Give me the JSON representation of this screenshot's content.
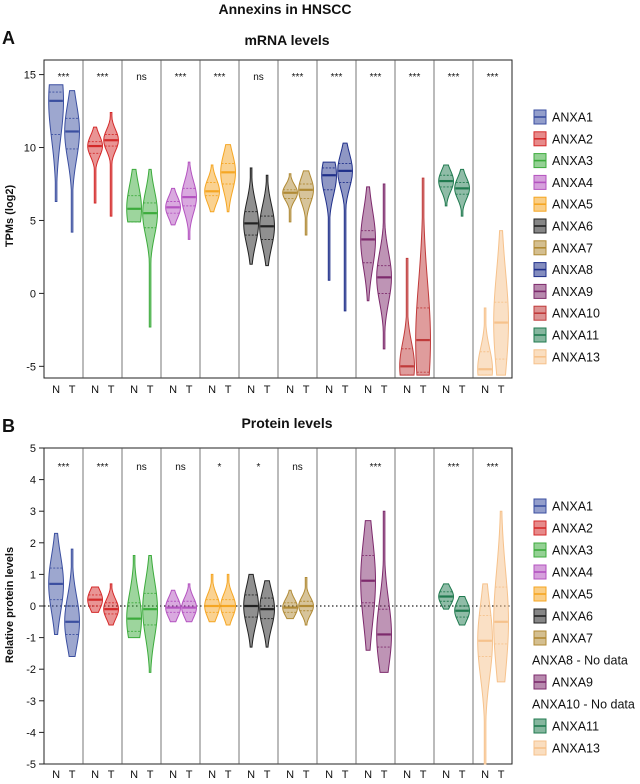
{
  "title": "Annexins in HNSCC",
  "colors": {
    "ANXA1": "#3b4fa0",
    "ANXA2": "#d42a2a",
    "ANXA3": "#3cab3c",
    "ANXA4": "#b453c0",
    "ANXA5": "#f5a623",
    "ANXA6": "#222222",
    "ANXA7": "#b08a35",
    "ANXA8": "#1f2f8a",
    "ANXA9": "#7d2a6c",
    "ANXA10": "#c03a3a",
    "ANXA11": "#207a4f",
    "ANXA13": "#f6c28c"
  },
  "chart_data": [
    {
      "type": "violin",
      "panel_label": "A",
      "title": "mRNA levels",
      "xlabel": "",
      "ylabel": "TPMs (log2)",
      "ylim": [
        -5.8,
        16
      ],
      "yticks": [
        -5,
        0,
        5,
        10,
        15
      ],
      "reference_line": null,
      "group_labels": [
        "N",
        "T"
      ],
      "legend": [
        "ANXA1",
        "ANXA2",
        "ANXA3",
        "ANXA4",
        "ANXA5",
        "ANXA6",
        "ANXA7",
        "ANXA8",
        "ANXA9",
        "ANXA10",
        "ANXA11",
        "ANXA13"
      ],
      "series": [
        {
          "name": "ANXA1",
          "sig": "***",
          "N": {
            "min": 6.3,
            "max": 14.3,
            "median": 13.2,
            "q1": 10.9,
            "q3": 13.8
          },
          "T": {
            "min": 4.2,
            "max": 13.9,
            "median": 11.1,
            "q1": 9.9,
            "q3": 12.0
          }
        },
        {
          "name": "ANXA2",
          "sig": "***",
          "N": {
            "min": 6.2,
            "max": 11.4,
            "median": 10.1,
            "q1": 9.6,
            "q3": 10.4
          },
          "T": {
            "min": 5.3,
            "max": 12.4,
            "median": 10.5,
            "q1": 10.1,
            "q3": 10.9
          }
        },
        {
          "name": "ANXA3",
          "sig": "ns",
          "N": {
            "min": 4.9,
            "max": 8.5,
            "median": 5.8,
            "q1": 4.9,
            "q3": 6.7
          },
          "T": {
            "min": -2.3,
            "max": 8.5,
            "median": 5.5,
            "q1": 4.5,
            "q3": 6.2
          }
        },
        {
          "name": "ANXA4",
          "sig": "***",
          "N": {
            "min": 4.7,
            "max": 7.2,
            "median": 5.9,
            "q1": 5.5,
            "q3": 6.3
          },
          "T": {
            "min": 3.7,
            "max": 9.0,
            "median": 6.6,
            "q1": 6.0,
            "q3": 7.2
          }
        },
        {
          "name": "ANXA5",
          "sig": "***",
          "N": {
            "min": 5.6,
            "max": 8.8,
            "median": 7.0,
            "q1": 6.7,
            "q3": 7.6
          },
          "T": {
            "min": 5.6,
            "max": 10.2,
            "median": 8.3,
            "q1": 7.5,
            "q3": 8.9
          }
        },
        {
          "name": "ANXA6",
          "sig": "ns",
          "N": {
            "min": 2.0,
            "max": 8.6,
            "median": 4.8,
            "q1": 4.0,
            "q3": 5.6
          },
          "T": {
            "min": 1.9,
            "max": 8.1,
            "median": 4.6,
            "q1": 3.7,
            "q3": 5.3
          }
        },
        {
          "name": "ANXA7",
          "sig": "***",
          "N": {
            "min": 4.9,
            "max": 8.2,
            "median": 6.9,
            "q1": 6.5,
            "q3": 7.1
          },
          "T": {
            "min": 4.0,
            "max": 8.4,
            "median": 7.1,
            "q1": 6.5,
            "q3": 7.5
          }
        },
        {
          "name": "ANXA8",
          "sig": "***",
          "N": {
            "min": 0.9,
            "max": 9.0,
            "median": 8.1,
            "q1": 7.1,
            "q3": 8.6
          },
          "T": {
            "min": -1.2,
            "max": 10.3,
            "median": 8.4,
            "q1": 7.6,
            "q3": 8.9
          }
        },
        {
          "name": "ANXA9",
          "sig": "***",
          "N": {
            "min": -0.5,
            "max": 7.3,
            "median": 3.7,
            "q1": 2.1,
            "q3": 4.3
          },
          "T": {
            "min": -3.8,
            "max": 7.5,
            "median": 1.1,
            "q1": 0.0,
            "q3": 1.9
          }
        },
        {
          "name": "ANXA10",
          "sig": "***",
          "N": {
            "min": -5.6,
            "max": 2.4,
            "median": -5.0,
            "q1": -5.6,
            "q3": -3.8
          },
          "T": {
            "min": -5.6,
            "max": 7.9,
            "median": -3.2,
            "q1": -5.4,
            "q3": -1.0
          }
        },
        {
          "name": "ANXA11",
          "sig": "***",
          "N": {
            "min": 6.0,
            "max": 8.8,
            "median": 7.7,
            "q1": 7.3,
            "q3": 8.1
          },
          "T": {
            "min": 5.3,
            "max": 8.5,
            "median": 7.2,
            "q1": 6.8,
            "q3": 7.6
          }
        },
        {
          "name": "ANXA13",
          "sig": "***",
          "N": {
            "min": -5.6,
            "max": -1.0,
            "median": -5.2,
            "q1": -5.6,
            "q3": -4.0
          },
          "T": {
            "min": -5.6,
            "max": 4.3,
            "median": -2.0,
            "q1": -4.5,
            "q3": -0.6
          }
        }
      ]
    },
    {
      "type": "violin",
      "panel_label": "B",
      "title": "Protein levels",
      "xlabel": "",
      "ylabel": "Relative protein levels",
      "ylim": [
        -5,
        5
      ],
      "yticks": [
        -5,
        -4,
        -3,
        -2,
        -1,
        0,
        1,
        2,
        3,
        4,
        5
      ],
      "reference_line": 0,
      "group_labels": [
        "N",
        "T"
      ],
      "legend": [
        "ANXA1",
        "ANXA2",
        "ANXA3",
        "ANXA4",
        "ANXA5",
        "ANXA6",
        "ANXA7",
        "ANXA8 - No data",
        "ANXA9",
        "ANXA10 - No data",
        "ANXA11",
        "ANXA13"
      ],
      "series": [
        {
          "name": "ANXA1",
          "sig": "***",
          "N": {
            "min": -0.9,
            "max": 2.3,
            "median": 0.7,
            "q1": 0.2,
            "q3": 1.2
          },
          "T": {
            "min": -1.6,
            "max": 1.8,
            "median": -0.5,
            "q1": -0.9,
            "q3": 0.0
          }
        },
        {
          "name": "ANXA2",
          "sig": "***",
          "N": {
            "min": -0.2,
            "max": 0.6,
            "median": 0.2,
            "q1": 0.0,
            "q3": 0.35
          },
          "T": {
            "min": -0.6,
            "max": 0.7,
            "median": -0.1,
            "q1": -0.25,
            "q3": 0.1
          }
        },
        {
          "name": "ANXA3",
          "sig": "ns",
          "N": {
            "min": -1.0,
            "max": 1.6,
            "median": -0.4,
            "q1": -0.8,
            "q3": 0.1
          },
          "T": {
            "min": -2.1,
            "max": 1.6,
            "median": -0.1,
            "q1": -0.6,
            "q3": 0.4
          }
        },
        {
          "name": "ANXA4",
          "sig": "ns",
          "N": {
            "min": -0.5,
            "max": 0.5,
            "median": -0.05,
            "q1": -0.2,
            "q3": 0.15
          },
          "T": {
            "min": -0.5,
            "max": 0.7,
            "median": -0.05,
            "q1": -0.2,
            "q3": 0.15
          }
        },
        {
          "name": "ANXA5",
          "sig": "*",
          "N": {
            "min": -0.5,
            "max": 1.0,
            "median": 0.0,
            "q1": -0.2,
            "q3": 0.2
          },
          "T": {
            "min": -0.6,
            "max": 1.0,
            "median": 0.0,
            "q1": -0.2,
            "q3": 0.2
          }
        },
        {
          "name": "ANXA6",
          "sig": "*",
          "N": {
            "min": -1.3,
            "max": 1.0,
            "median": 0.0,
            "q1": -0.35,
            "q3": 0.35
          },
          "T": {
            "min": -1.3,
            "max": 0.8,
            "median": -0.1,
            "q1": -0.4,
            "q3": 0.25
          }
        },
        {
          "name": "ANXA7",
          "sig": "ns",
          "N": {
            "min": -0.4,
            "max": 0.5,
            "median": -0.05,
            "q1": -0.2,
            "q3": 0.1
          },
          "T": {
            "min": -0.6,
            "max": 0.9,
            "median": 0.0,
            "q1": -0.15,
            "q3": 0.15
          }
        },
        {
          "name": "ANXA8",
          "sig": "",
          "N": null,
          "T": null
        },
        {
          "name": "ANXA9",
          "sig": "***",
          "N": {
            "min": -1.4,
            "max": 2.7,
            "median": 0.8,
            "q1": 0.1,
            "q3": 1.6
          },
          "T": {
            "min": -2.1,
            "max": 3.0,
            "median": -0.9,
            "q1": -1.3,
            "q3": -0.1
          }
        },
        {
          "name": "ANXA10",
          "sig": "",
          "N": null,
          "T": null
        },
        {
          "name": "ANXA11",
          "sig": "***",
          "N": {
            "min": -0.1,
            "max": 0.7,
            "median": 0.3,
            "q1": 0.15,
            "q3": 0.45
          },
          "T": {
            "min": -0.6,
            "max": 0.3,
            "median": -0.15,
            "q1": -0.35,
            "q3": 0.0
          }
        },
        {
          "name": "ANXA13",
          "sig": "***",
          "N": {
            "min": -5.0,
            "max": 0.7,
            "median": -1.1,
            "q1": -1.6,
            "q3": -0.3
          },
          "T": {
            "min": -2.4,
            "max": 3.0,
            "median": -0.5,
            "q1": -1.2,
            "q3": 0.6
          }
        }
      ]
    }
  ]
}
